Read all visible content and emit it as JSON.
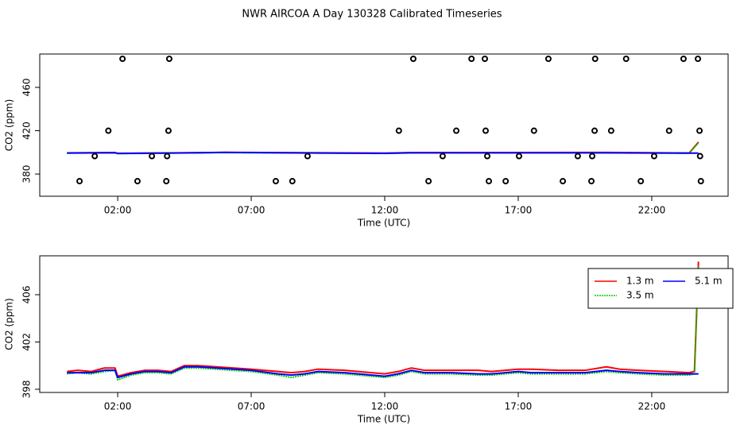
{
  "title": "NWR AIRCOA A  Day 130328  Calibrated Timeseries",
  "chart_data": [
    {
      "type": "line",
      "xlabel": "Time (UTC)",
      "ylabel": "CO2 (ppm)",
      "xlim": [
        -0.92,
        24.86
      ],
      "ylim": [
        359.5,
        490.8
      ],
      "xticks": [
        {
          "value": 2,
          "label": "02:00"
        },
        {
          "value": 7,
          "label": "07:00"
        },
        {
          "value": 12,
          "label": "12:00"
        },
        {
          "value": 17,
          "label": "17:00"
        },
        {
          "value": 22,
          "label": "22:00"
        }
      ],
      "yticks": [
        380,
        420,
        460
      ],
      "x": [
        0.1,
        1.9,
        2.0,
        4.0,
        6.0,
        12.0,
        13.0,
        20.3,
        23.4,
        23.75
      ],
      "series": [
        {
          "type": "scatter",
          "color": "#000000",
          "x": [
            2.18,
            3.93,
            13.07,
            15.25,
            15.75,
            18.13,
            19.88,
            21.04,
            23.19,
            23.73,
            1.65,
            3.9,
            12.53,
            14.68,
            15.78,
            17.59,
            19.86,
            20.48,
            22.65,
            23.79,
            1.14,
            3.28,
            3.85,
            9.11,
            14.17,
            15.84,
            17.03,
            19.23,
            19.77,
            22.09,
            23.81,
            0.57,
            2.74,
            3.82,
            7.92,
            8.54,
            13.64,
            15.9,
            16.53,
            18.67,
            19.74,
            21.59,
            23.84
          ],
          "values": [
            486.4,
            486.4,
            486.4,
            486.4,
            486.4,
            486.4,
            486.4,
            486.4,
            486.4,
            486.4,
            420,
            420,
            420,
            420,
            420,
            420,
            420,
            420,
            420,
            420,
            396.5,
            396.5,
            396.5,
            396.5,
            396.5,
            396.5,
            396.5,
            396.5,
            396.5,
            396.5,
            396.5,
            373.4,
            373.4,
            373.4,
            373.4,
            373.4,
            373.4,
            373.4,
            373.4,
            373.4,
            373.4,
            373.4,
            373.4
          ]
        },
        {
          "color": "#ff0000",
          "values": [
            399.5,
            399.8,
            399.1,
            399.5,
            400.0,
            399.3,
            399.8,
            399.9,
            399.4,
            409.5
          ]
        },
        {
          "color": "#00cd00",
          "linestyle": "dotted",
          "values": [
            399.3,
            399.6,
            398.8,
            399.3,
            399.8,
            399.0,
            399.5,
            399.5,
            399.2,
            408.8
          ]
        },
        {
          "color": "#0000ff",
          "values": [
            399.4,
            399.6,
            399.0,
            399.4,
            399.9,
            399.1,
            399.6,
            399.6,
            399.3,
            399.3
          ]
        }
      ]
    },
    {
      "type": "line",
      "xlabel": "Time (UTC)",
      "ylabel": "CO2 (ppm)",
      "xlim": [
        -0.92,
        24.86
      ],
      "ylim": [
        397.73,
        409.29
      ],
      "xticks": [
        {
          "value": 2,
          "label": "02:00"
        },
        {
          "value": 7,
          "label": "07:00"
        },
        {
          "value": 12,
          "label": "12:00"
        },
        {
          "value": 17,
          "label": "17:00"
        },
        {
          "value": 22,
          "label": "22:00"
        }
      ],
      "yticks": [
        398,
        402,
        406
      ],
      "legend": "topright",
      "legend_columns": 2,
      "x": [
        0.1,
        0.5,
        1.0,
        1.5,
        1.9,
        2.0,
        2.5,
        3.0,
        3.5,
        4.0,
        4.5,
        5.0,
        7.0,
        8.0,
        8.5,
        9.0,
        9.5,
        10.5,
        12.0,
        12.5,
        13.0,
        13.5,
        14.5,
        15.5,
        16.0,
        17.0,
        17.5,
        18.5,
        19.5,
        20.3,
        20.8,
        21.5,
        22.5,
        23.4,
        23.6,
        23.75
      ],
      "series": [
        {
          "name": "1.3 m",
          "color": "#ff0000",
          "values": [
            399.5,
            399.6,
            399.5,
            399.8,
            399.8,
            399.1,
            399.4,
            399.6,
            399.6,
            399.5,
            400.0,
            400.0,
            399.7,
            399.5,
            399.4,
            399.5,
            399.7,
            399.6,
            399.3,
            399.5,
            399.8,
            399.6,
            399.6,
            399.6,
            399.5,
            399.7,
            399.7,
            399.6,
            399.6,
            399.9,
            399.7,
            399.6,
            399.5,
            399.4,
            399.5,
            408.8
          ]
        },
        {
          "name": "3.5 m",
          "color": "#00cd00",
          "linestyle": "dotted",
          "values": [
            399.3,
            399.4,
            399.3,
            399.5,
            399.6,
            398.8,
            399.2,
            399.4,
            399.4,
            399.3,
            399.8,
            399.8,
            399.5,
            399.2,
            399.0,
            399.2,
            399.4,
            399.3,
            399.0,
            399.2,
            399.5,
            399.3,
            399.3,
            399.2,
            399.2,
            399.4,
            399.3,
            399.3,
            399.3,
            399.5,
            399.4,
            399.3,
            399.2,
            399.2,
            399.3,
            408.5
          ]
        },
        {
          "name": "5.1 m",
          "color": "#0000ff",
          "values": [
            399.4,
            399.4,
            399.4,
            399.6,
            399.6,
            399.0,
            399.3,
            399.5,
            399.5,
            399.4,
            399.9,
            399.9,
            399.6,
            399.3,
            399.2,
            399.3,
            399.5,
            399.4,
            399.1,
            399.3,
            399.6,
            399.4,
            399.4,
            399.3,
            399.3,
            399.5,
            399.4,
            399.4,
            399.4,
            399.6,
            399.5,
            399.4,
            399.3,
            399.3,
            399.3,
            399.3
          ]
        }
      ]
    }
  ]
}
